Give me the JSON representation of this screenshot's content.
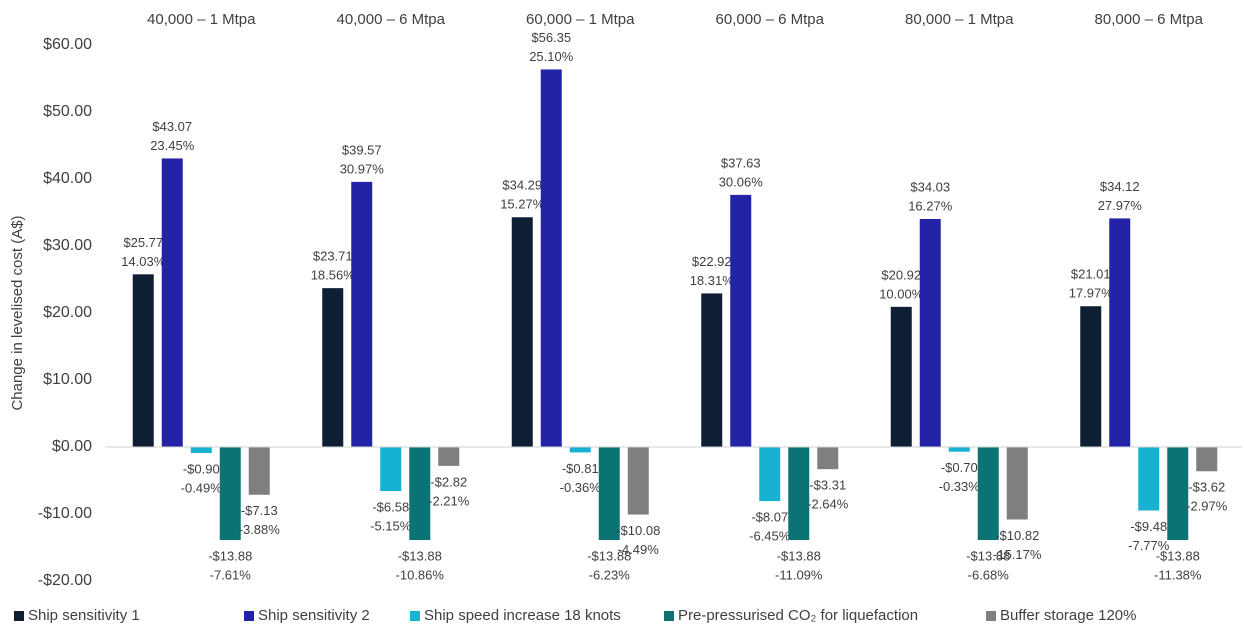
{
  "chart_data": {
    "type": "bar",
    "y_axis_label": "Change in levelised cost (A$)",
    "categories": [
      "40,000 – 1 Mtpa",
      "40,000 – 6 Mtpa",
      "60,000 – 1 Mtpa",
      "60,000 – 6 Mtpa",
      "80,000 – 1 Mtpa",
      "80,000 – 6 Mtpa"
    ],
    "ylim": [
      -20,
      60
    ],
    "yticks": [
      {
        "value": -20,
        "label": "-$20.00"
      },
      {
        "value": -10,
        "label": "-$10.00"
      },
      {
        "value": 0,
        "label": "$0.00"
      },
      {
        "value": 10,
        "label": "$10.00"
      },
      {
        "value": 20,
        "label": "$20.00"
      },
      {
        "value": 30,
        "label": "$30.00"
      },
      {
        "value": 40,
        "label": "$40.00"
      },
      {
        "value": 50,
        "label": "$50.00"
      },
      {
        "value": 60,
        "label": "$60.00"
      }
    ],
    "grid": false,
    "legend": "bottom",
    "series": [
      {
        "name": "Ship sensitivity 1",
        "color": "#0e1f33",
        "values": [
          25.77,
          23.71,
          34.29,
          22.92,
          20.92,
          21.01
        ],
        "value_labels": [
          "$25.77",
          "$23.71",
          "$34.29",
          "$22.92",
          "$20.92",
          "$21.01"
        ],
        "share_labels": [
          "14.03%",
          "18.56%",
          "15.27%",
          "18.31%",
          "10.00%",
          "17.97%"
        ]
      },
      {
        "name": "Ship sensitivity 2",
        "color": "#2323a8",
        "values": [
          43.07,
          39.57,
          56.35,
          37.63,
          34.03,
          34.12
        ],
        "value_labels": [
          "$43.07",
          "$39.57",
          "$56.35",
          "$37.63",
          "$34.03",
          "$34.12"
        ],
        "share_labels": [
          "23.45%",
          "30.97%",
          "25.10%",
          "30.06%",
          "16.27%",
          "27.97%"
        ]
      },
      {
        "name": "Ship speed increase 18 knots",
        "color": "#17b1d2",
        "values": [
          -0.9,
          -6.58,
          -0.81,
          -8.07,
          -0.7,
          -9.48
        ],
        "value_labels": [
          "-$0.90",
          "-$6.58",
          "-$0.81",
          "-$8.07",
          "-$0.70",
          "-$9.48"
        ],
        "share_labels": [
          "-0.49%",
          "-5.15%",
          "-0.36%",
          "-6.45%",
          "-0.33%",
          "-7.77%"
        ]
      },
      {
        "name": "Pre-pressurised CO₂ for liquefaction",
        "color": "#0b7373",
        "values": [
          -13.88,
          -13.88,
          -13.88,
          -13.88,
          -13.88,
          -13.88
        ],
        "value_labels": [
          "-$13.88",
          "-$13.88",
          "-$13.88",
          "-$13.88",
          "-$13.88",
          "-$13.88"
        ],
        "share_labels": [
          "-7.61%",
          "-10.86%",
          "-6.23%",
          "-11.09%",
          "-6.68%",
          "-11.38%"
        ]
      },
      {
        "name": "Buffer storage 120%",
        "color": "#7f7f7f",
        "values": [
          -7.13,
          -2.82,
          -10.08,
          -3.31,
          -10.82,
          -3.62
        ],
        "value_labels": [
          "-$7.13",
          "-$2.82",
          "-$10.08",
          "-$3.31",
          "-$10.82",
          "-$3.62"
        ],
        "share_labels": [
          "-3.88%",
          "-2.21%",
          "-4.49%",
          "-2.64%",
          "-15.17%",
          "-2.97%"
        ]
      }
    ]
  }
}
